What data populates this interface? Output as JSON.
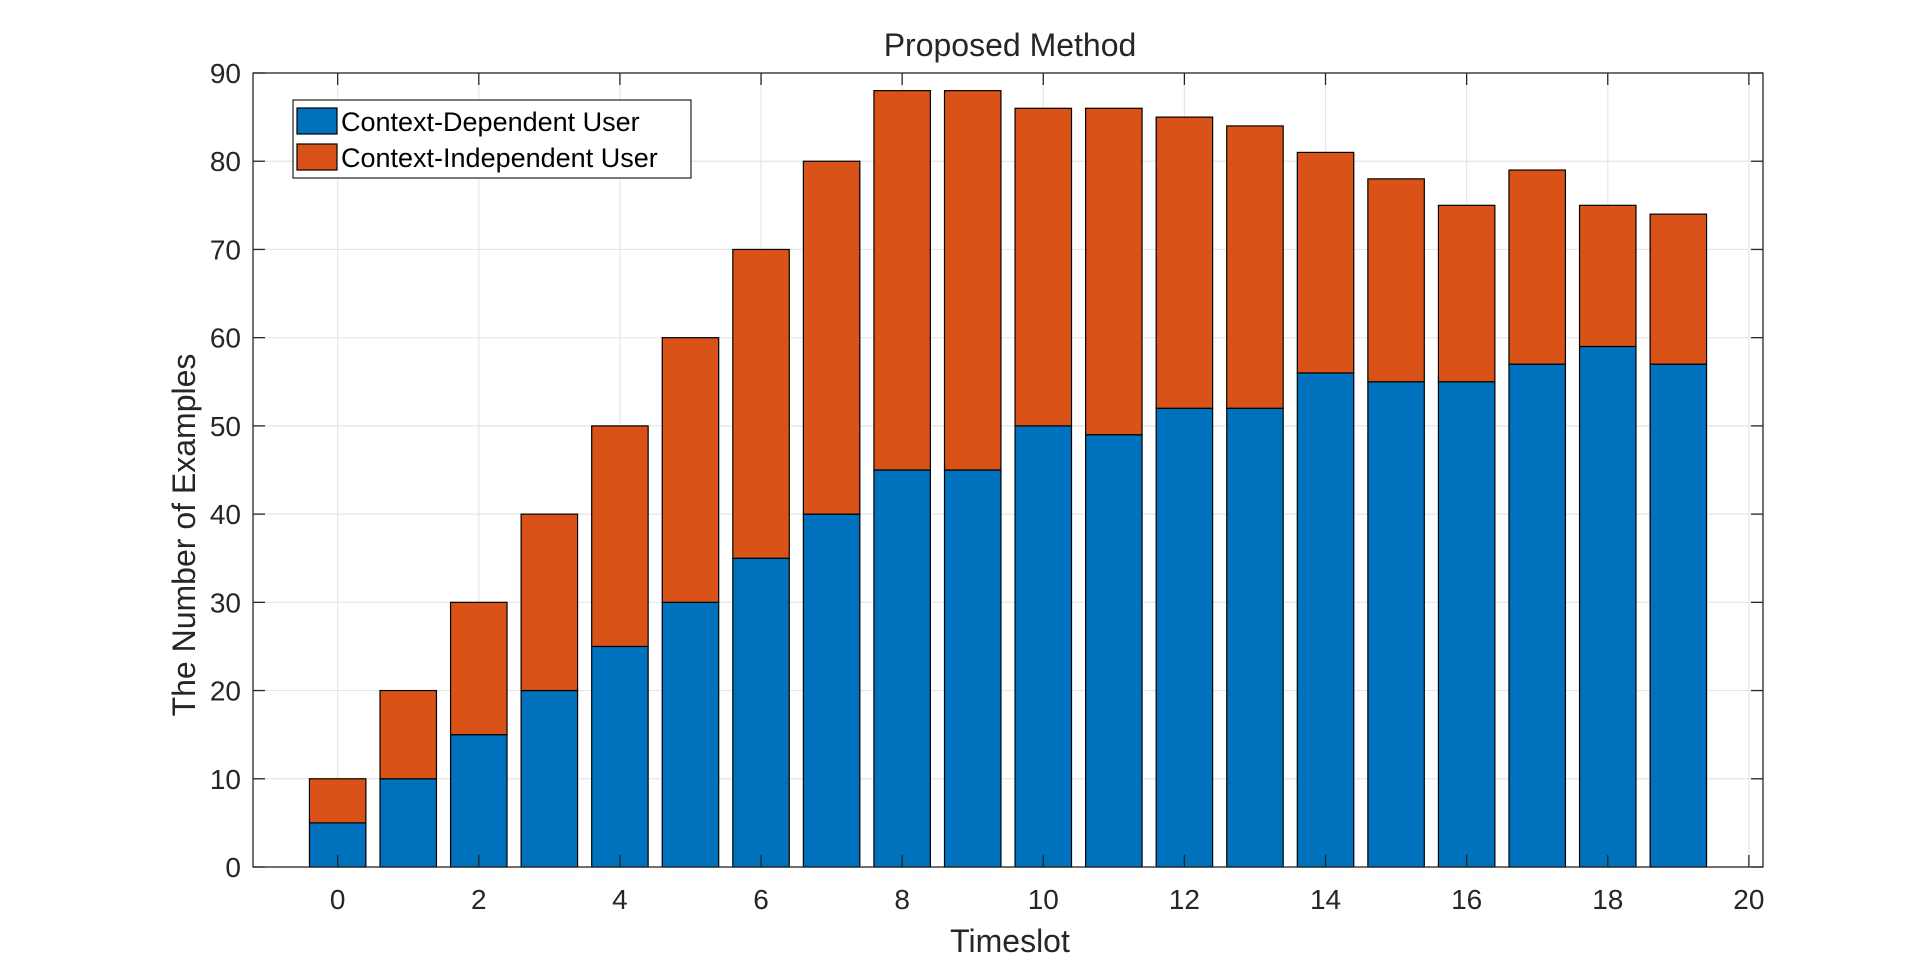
{
  "chart_data": {
    "type": "bar",
    "stacked": true,
    "title": "Proposed Method",
    "xlabel": "Timeslot",
    "ylabel": "The Number of Examples",
    "xlim": [
      -1.2,
      20.2
    ],
    "ylim": [
      0,
      90
    ],
    "xticks": [
      0,
      2,
      4,
      6,
      8,
      10,
      12,
      14,
      16,
      18,
      20
    ],
    "yticks": [
      0,
      10,
      20,
      30,
      40,
      50,
      60,
      70,
      80,
      90
    ],
    "grid": true,
    "legend_position": "top-left",
    "x": [
      0,
      1,
      2,
      3,
      4,
      5,
      6,
      7,
      8,
      9,
      10,
      11,
      12,
      13,
      14,
      15,
      16,
      17,
      18,
      19
    ],
    "series": [
      {
        "name": "Context-Dependent User",
        "color": "#0072BD",
        "values": [
          5,
          10,
          15,
          20,
          25,
          30,
          35,
          40,
          45,
          45,
          50,
          49,
          52,
          52,
          56,
          55,
          55,
          57,
          59,
          57
        ]
      },
      {
        "name": "Context-Independent User",
        "color": "#D95319",
        "values": [
          5,
          10,
          15,
          20,
          25,
          30,
          35,
          40,
          43,
          43,
          36,
          37,
          33,
          32,
          25,
          23,
          20,
          22,
          16,
          17
        ]
      }
    ]
  }
}
